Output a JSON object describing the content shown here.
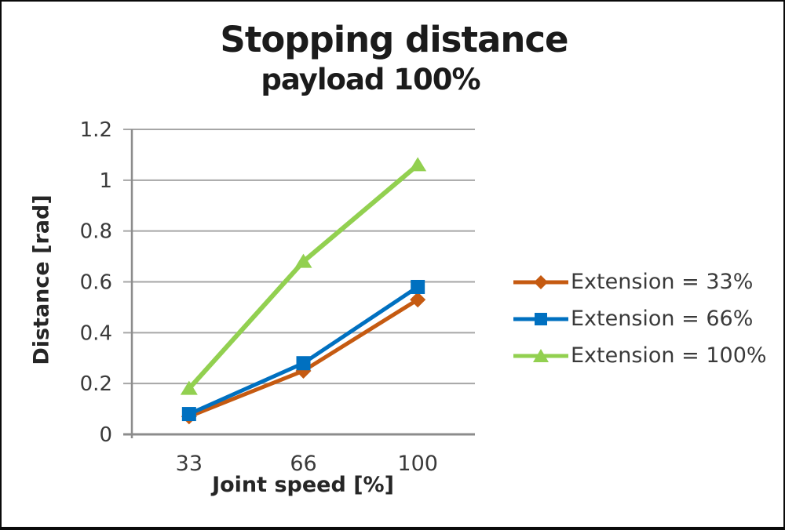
{
  "figure": {
    "title": "Stopping distance",
    "subtitle": "payload 100%"
  },
  "chart_data": {
    "type": "line",
    "title": "Stopping distance",
    "subtitle": "payload 100%",
    "xlabel": "Joint speed [%]",
    "ylabel": "Distance [rad]",
    "categories": [
      "33",
      "66",
      "100"
    ],
    "x_values": [
      33,
      66,
      100
    ],
    "series": [
      {
        "name": "Extension = 33%",
        "marker": "diamond",
        "color": "#C55A11",
        "line_width": 5,
        "values": [
          0.07,
          0.25,
          0.53
        ]
      },
      {
        "name": "Extension = 66%",
        "marker": "square",
        "color": "#0070C0",
        "line_width": 5,
        "values": [
          0.08,
          0.28,
          0.58
        ]
      },
      {
        "name": "Extension = 100%",
        "marker": "triangle",
        "color": "#92D050",
        "line_width": 6,
        "values": [
          0.18,
          0.68,
          1.06
        ]
      }
    ],
    "ylim": [
      0,
      1.2
    ],
    "ytick_step": 0.2,
    "ytick_labels": [
      "0",
      "0.2",
      "0.4",
      "0.6",
      "0.8",
      "1",
      "1.2"
    ],
    "grid": true,
    "legend_position": "right"
  },
  "colors": {
    "background": "#FFFFFF",
    "border": "#0A0A0A",
    "gridline": "#A6A6A6",
    "axis": "#8C8C8C",
    "title_text": "#1B1B1B",
    "label_text": "#3A3A3A"
  }
}
